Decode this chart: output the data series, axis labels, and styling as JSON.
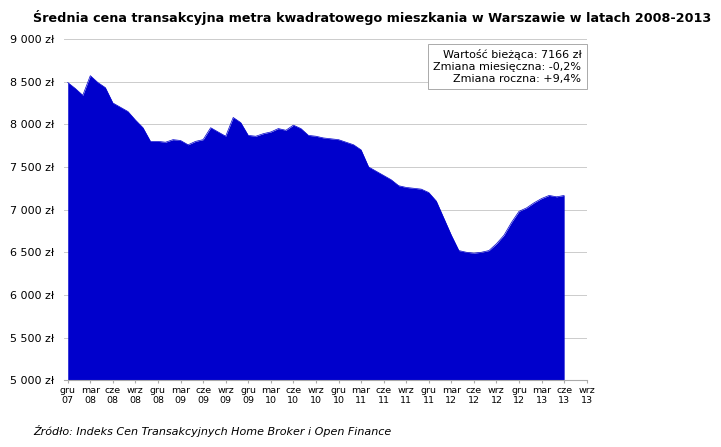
{
  "title": "Średnia cena transakcyjna metra kwadratowego mieszkania w Warszawie w latach 2008-2013",
  "source": "Źródło: Indeks Cen Transakcyjnych Home Broker i Open Finance",
  "ann1": "Wartość bieżąca: 7166 zł",
  "ann2": "Zmiana miesięczna: -0,2%",
  "ann3": "Zmiana roczna: +9,4%",
  "fill_color": "#0000CC",
  "bg_color": "#FFFFFF",
  "grid_color": "#CCCCCC",
  "ylim": [
    5000,
    9000
  ],
  "yticks": [
    5000,
    5500,
    6000,
    6500,
    7000,
    7500,
    8000,
    8500,
    9000
  ],
  "xtick_row1": [
    "gru",
    "mar",
    "cze",
    "wrz",
    "gru",
    "mar",
    "cze",
    "wrz",
    "gru",
    "mar",
    "cze",
    "wrz",
    "gru",
    "mar",
    "cze",
    "wrz",
    "gru",
    "mar",
    "cze",
    "wrz",
    "gru",
    "mar",
    "cze",
    "wrz"
  ],
  "xtick_row2": [
    "07",
    "08",
    "08",
    "08",
    "08",
    "09",
    "09",
    "09",
    "09",
    "10",
    "10",
    "10",
    "10",
    "11",
    "11",
    "11",
    "11",
    "12",
    "12",
    "12",
    "12",
    "13",
    "13",
    "13"
  ],
  "y_values": [
    8490,
    8420,
    8340,
    8570,
    8490,
    8430,
    8250,
    8200,
    8150,
    8050,
    7960,
    7800,
    7800,
    7790,
    7820,
    7810,
    7760,
    7800,
    7820,
    7960,
    7910,
    7860,
    8080,
    8020,
    7870,
    7860,
    7890,
    7910,
    7950,
    7930,
    7990,
    7950,
    7870,
    7860,
    7840,
    7830,
    7820,
    7790,
    7760,
    7700,
    7500,
    7450,
    7400,
    7350,
    7280,
    7260,
    7250,
    7240,
    7200,
    7100,
    6900,
    6700,
    6520,
    6500,
    6490,
    6500,
    6520,
    6600,
    6700,
    6850,
    6980,
    7020,
    7080,
    7130,
    7166,
    7150,
    7166
  ],
  "xtick_positions": [
    0,
    3,
    6,
    9,
    12,
    15,
    18,
    21,
    24,
    27,
    30,
    33,
    36,
    39,
    42,
    45,
    48,
    51,
    54,
    57,
    60,
    63,
    66,
    69
  ]
}
